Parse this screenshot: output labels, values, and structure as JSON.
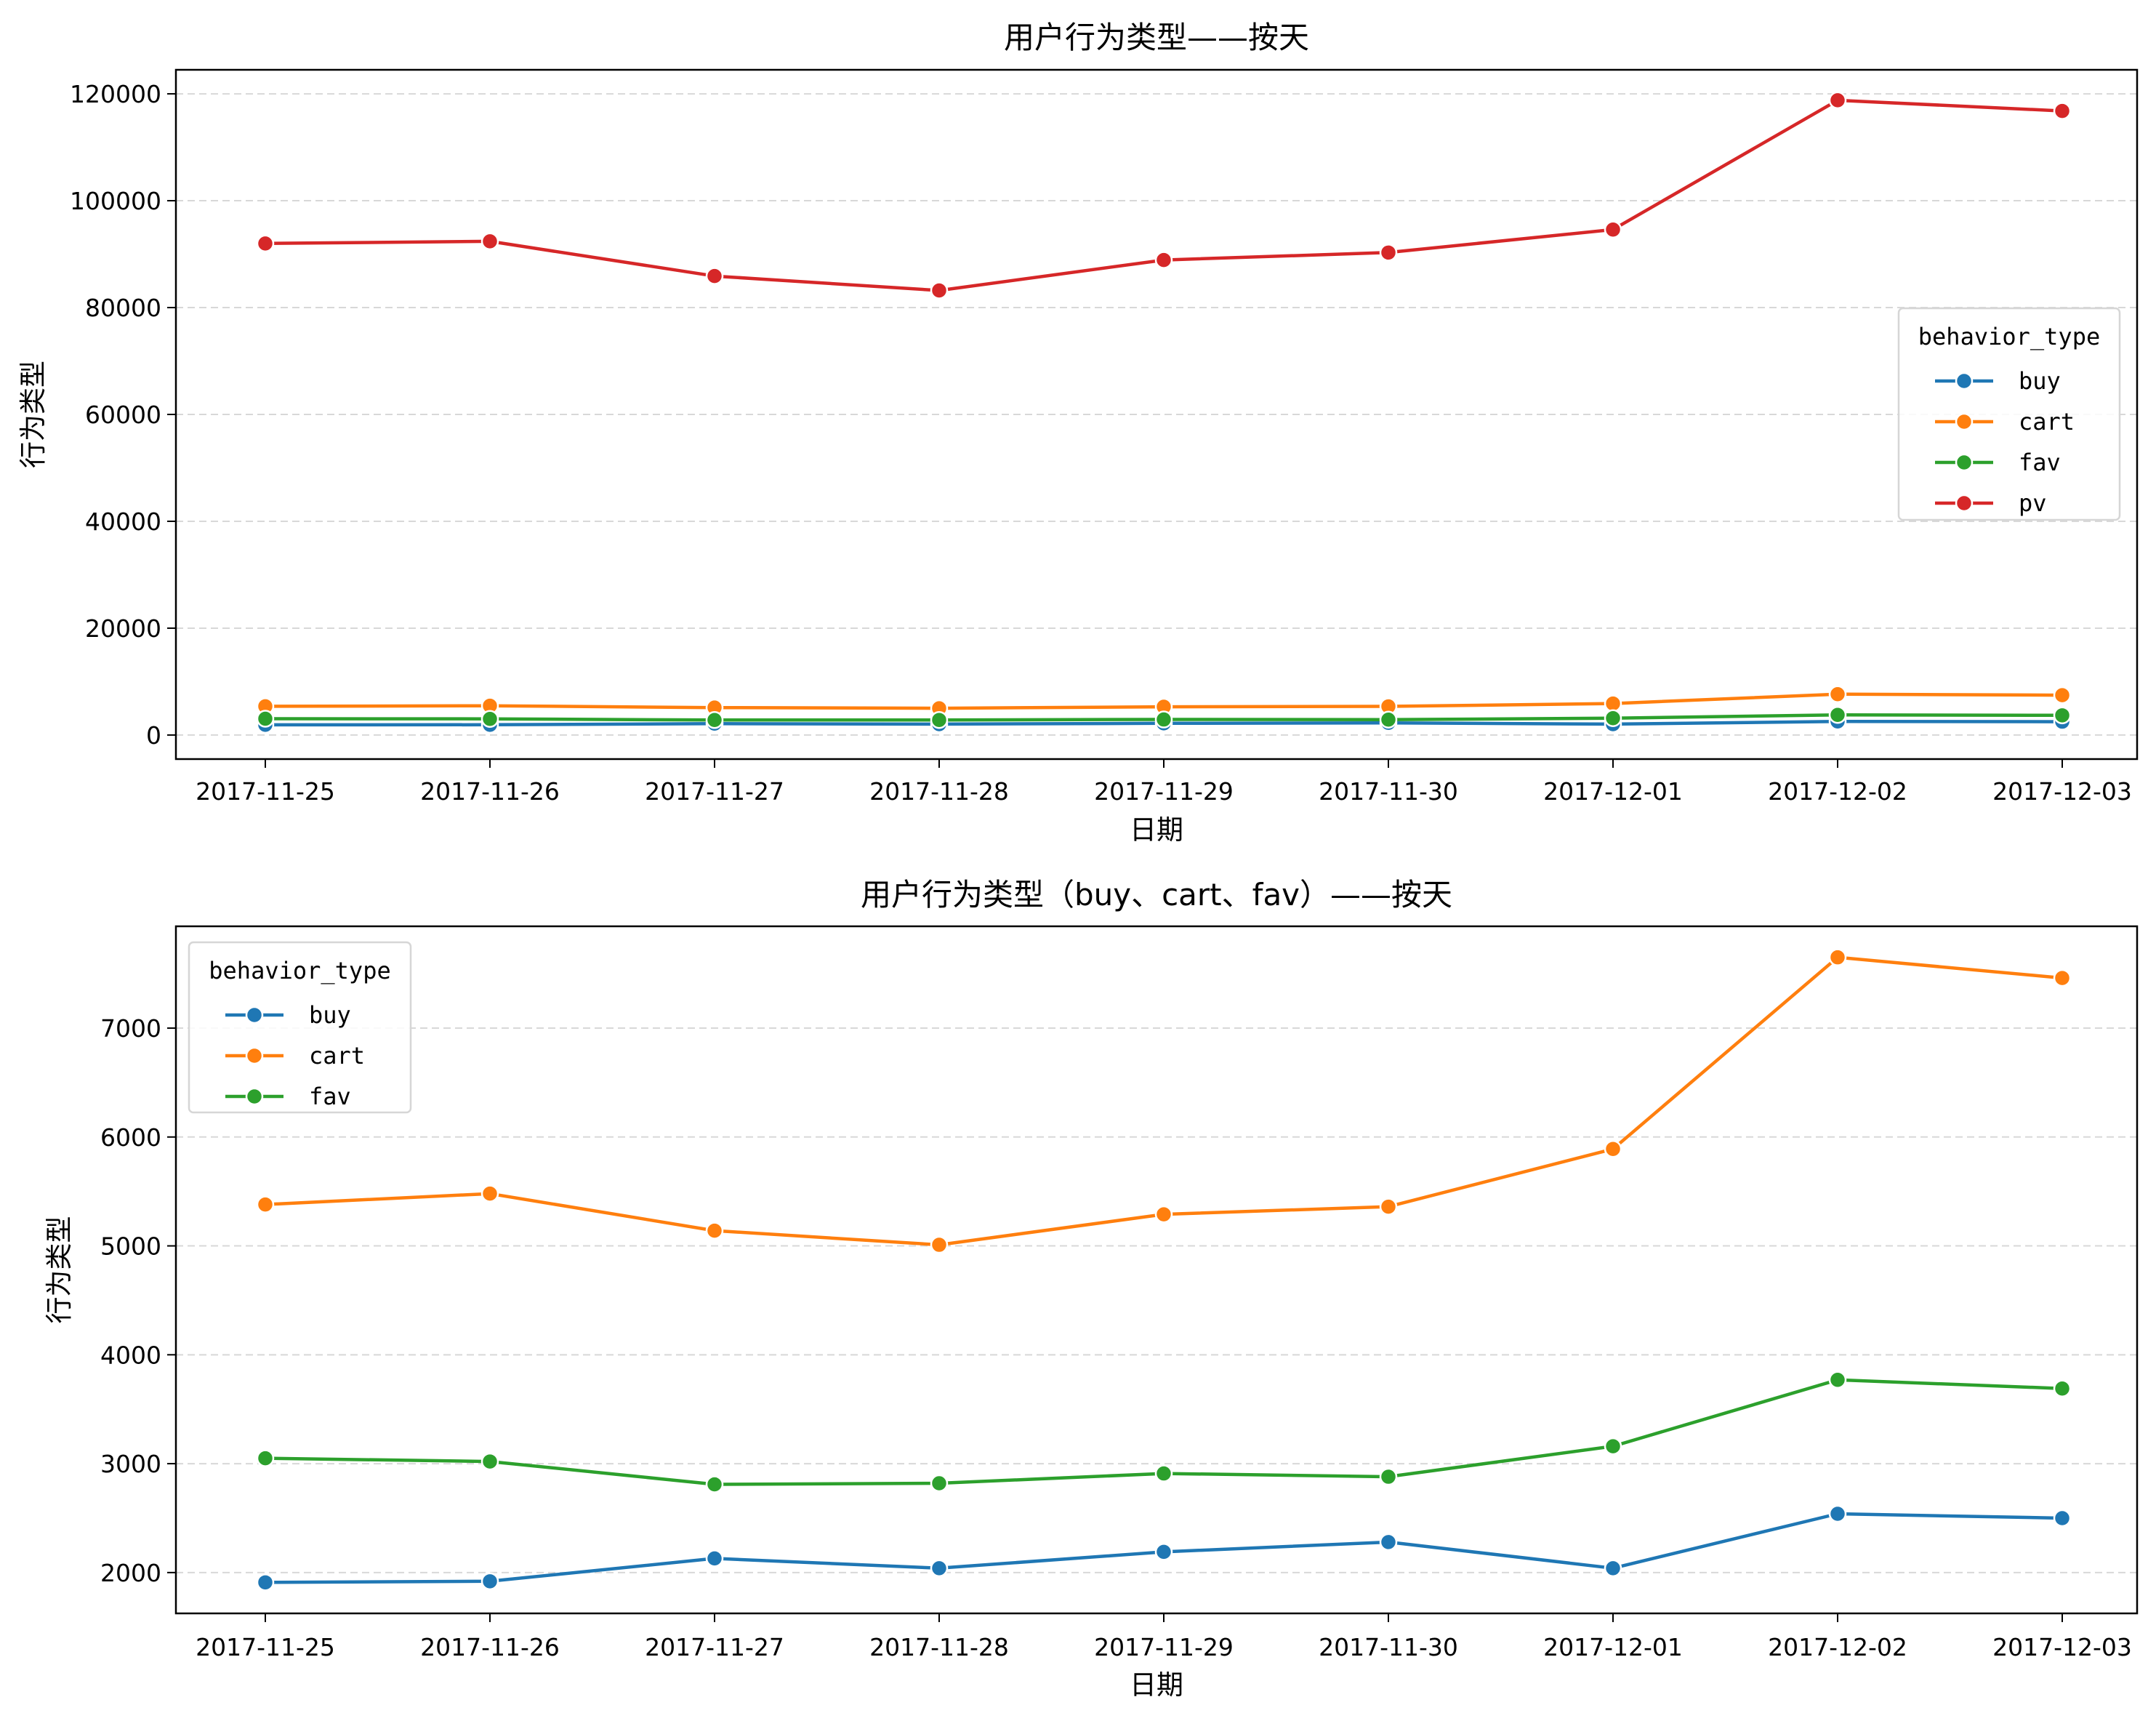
{
  "colors": {
    "buy": "#1f77b4",
    "cart": "#ff7f0e",
    "fav": "#2ca02c",
    "pv": "#d62728"
  },
  "chart_data": [
    {
      "type": "line",
      "title": "用户行为类型——按天",
      "xlabel": "日期",
      "ylabel": "行为类型",
      "categories": [
        "2017-11-25",
        "2017-11-26",
        "2017-11-27",
        "2017-11-28",
        "2017-11-29",
        "2017-11-30",
        "2017-12-01",
        "2017-12-02",
        "2017-12-03"
      ],
      "ylim": [
        -4500,
        124500
      ],
      "yticks": [
        0,
        20000,
        40000,
        60000,
        80000,
        100000,
        120000
      ],
      "yticklabels": [
        "0",
        "20000",
        "40000",
        "60000",
        "80000",
        "100000",
        "120000"
      ],
      "grid": "y-dashed",
      "legend": {
        "title": "behavior_type",
        "placement": "center-right"
      },
      "series": [
        {
          "name": "buy",
          "color": "#1f77b4",
          "values": [
            1910,
            1920,
            2130,
            2040,
            2190,
            2280,
            2040,
            2540,
            2500
          ]
        },
        {
          "name": "cart",
          "color": "#ff7f0e",
          "values": [
            5380,
            5480,
            5140,
            5010,
            5290,
            5360,
            5890,
            7650,
            7460
          ]
        },
        {
          "name": "fav",
          "color": "#2ca02c",
          "values": [
            3050,
            3020,
            2810,
            2820,
            2910,
            2880,
            3160,
            3770,
            3690
          ]
        },
        {
          "name": "pv",
          "color": "#d62728",
          "values": [
            92000,
            92400,
            85900,
            83200,
            88900,
            90300,
            94600,
            118800,
            116800
          ]
        }
      ]
    },
    {
      "type": "line",
      "title": "用户行为类型（buy、cart、fav）——按天",
      "xlabel": "日期",
      "ylabel": "行为类型",
      "categories": [
        "2017-11-25",
        "2017-11-26",
        "2017-11-27",
        "2017-11-28",
        "2017-11-29",
        "2017-11-30",
        "2017-12-01",
        "2017-12-02",
        "2017-12-03"
      ],
      "ylim": [
        1625,
        7935
      ],
      "yticks": [
        2000,
        3000,
        4000,
        5000,
        6000,
        7000
      ],
      "yticklabels": [
        "2000",
        "3000",
        "4000",
        "5000",
        "6000",
        "7000"
      ],
      "grid": "y-dashed",
      "legend": {
        "title": "behavior_type",
        "placement": "upper-left"
      },
      "series": [
        {
          "name": "buy",
          "color": "#1f77b4",
          "values": [
            1910,
            1920,
            2130,
            2040,
            2190,
            2280,
            2040,
            2540,
            2500
          ]
        },
        {
          "name": "cart",
          "color": "#ff7f0e",
          "values": [
            5380,
            5480,
            5140,
            5010,
            5290,
            5360,
            5890,
            7650,
            7460
          ]
        },
        {
          "name": "fav",
          "color": "#2ca02c",
          "values": [
            3050,
            3020,
            2810,
            2820,
            2910,
            2880,
            3160,
            3770,
            3690
          ]
        }
      ]
    }
  ]
}
